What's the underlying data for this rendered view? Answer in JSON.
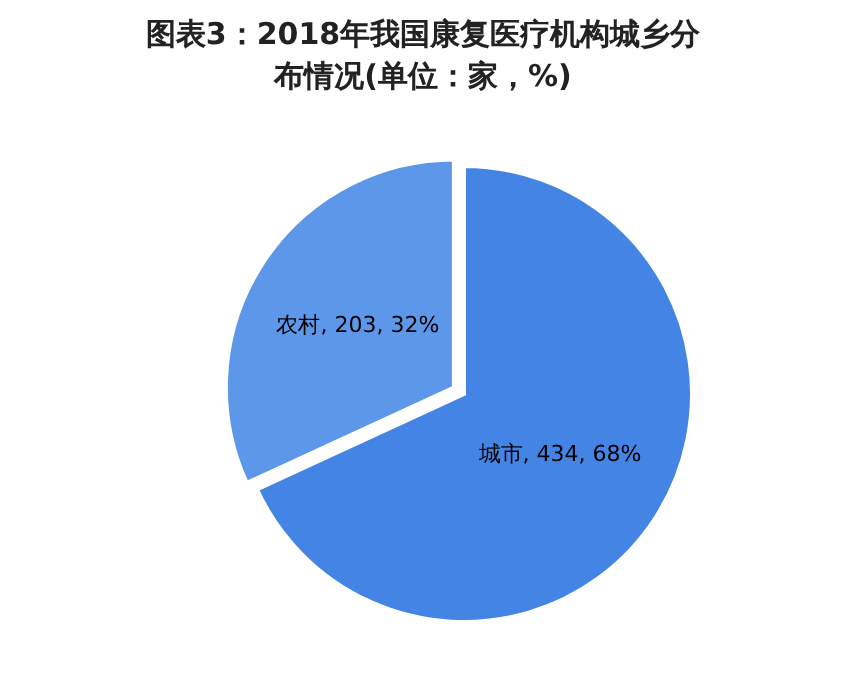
{
  "chart_data": {
    "type": "pie",
    "title": "图表3：2018年我国康复医疗机构城乡分布情况(单位：家，%)",
    "categories": [
      "城市",
      "农村"
    ],
    "values": [
      434,
      203
    ],
    "colors": [
      "#4384e4",
      "#5d97ea"
    ],
    "value_labels": [
      "434, 68%",
      "203, 32%"
    ]
  }
}
